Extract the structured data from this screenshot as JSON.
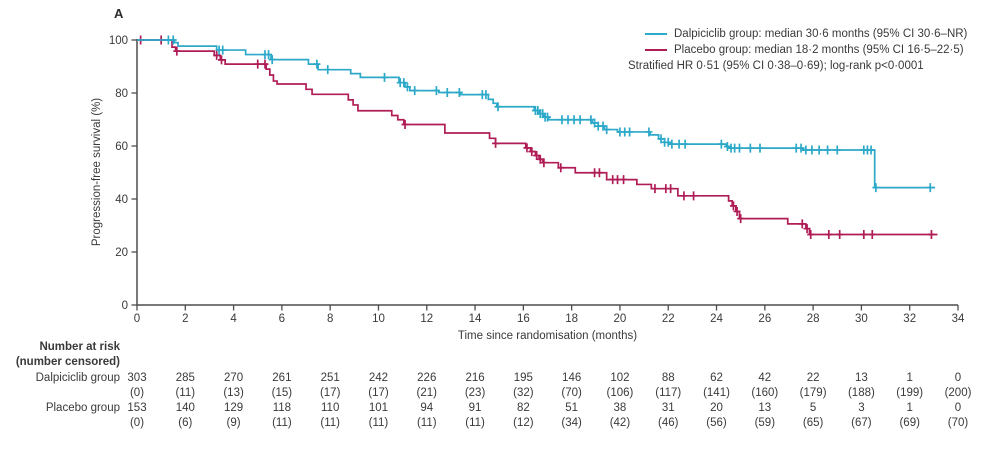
{
  "panel_label": "A",
  "colors": {
    "dalpiciclib": "#2CA9C8",
    "placebo": "#B01D56",
    "axis": "#4D4D4F",
    "text": "#3A3A3A"
  },
  "legend": {
    "items": [
      {
        "color_key": "dalpiciclib",
        "label": "Dalpiciclib group: median 30·6 months (95% CI 30·6–NR)"
      },
      {
        "color_key": "placebo",
        "label": "Placebo group: median 18·2 months (95% CI 16·5–22·5)"
      }
    ],
    "note": "Stratified HR 0·51 (95% CI 0·38–0·69); log-rank p<0·0001"
  },
  "chart_data": {
    "type": "line",
    "subtype": "kaplan-meier-step",
    "xlabel": "Time since randomisation (months)",
    "ylabel": "Progression-free survival (%)",
    "xlim": [
      0,
      34
    ],
    "ylim": [
      0,
      100
    ],
    "x_ticks": [
      0,
      2,
      4,
      6,
      8,
      10,
      12,
      14,
      16,
      18,
      20,
      22,
      24,
      26,
      28,
      30,
      32,
      34
    ],
    "y_ticks": [
      0,
      20,
      40,
      60,
      80,
      100
    ],
    "legend_position": "top-right",
    "grid": false,
    "series": [
      {
        "name": "Dalpiciclib group",
        "color_key": "dalpiciclib",
        "steps": [
          [
            0,
            100
          ],
          [
            1.55,
            99.0
          ],
          [
            1.7,
            97.7
          ],
          [
            3.3,
            96.2
          ],
          [
            4.5,
            94.5
          ],
          [
            5.55,
            92.6
          ],
          [
            7.1,
            90.9
          ],
          [
            7.5,
            88.8
          ],
          [
            8.85,
            87.3
          ],
          [
            9.25,
            85.9
          ],
          [
            10.85,
            83.9
          ],
          [
            11.1,
            82.3
          ],
          [
            11.3,
            80.9
          ],
          [
            12.5,
            80.2
          ],
          [
            13.4,
            79.4
          ],
          [
            14.55,
            77.6
          ],
          [
            14.75,
            76.1
          ],
          [
            14.9,
            74.8
          ],
          [
            16.45,
            73.4
          ],
          [
            16.65,
            72.2
          ],
          [
            16.85,
            70.9
          ],
          [
            17.05,
            69.9
          ],
          [
            18.85,
            68.7
          ],
          [
            19.1,
            67.5
          ],
          [
            19.35,
            66.2
          ],
          [
            19.9,
            65.3
          ],
          [
            21.25,
            64.2
          ],
          [
            21.6,
            62.7
          ],
          [
            21.85,
            61.4
          ],
          [
            22.05,
            60.7
          ],
          [
            24.4,
            59.8
          ],
          [
            24.6,
            59.2
          ],
          [
            27.55,
            58.5
          ],
          [
            30.55,
            44.3
          ]
        ],
        "end_month": 33.05,
        "censor_months": [
          1.3,
          1.5,
          3.4,
          3.55,
          5.3,
          5.45,
          5.6,
          7.45,
          7.9,
          10.25,
          10.9,
          11.05,
          11.2,
          11.5,
          12.4,
          12.85,
          13.35,
          14.3,
          14.45,
          14.95,
          16.5,
          16.6,
          16.7,
          16.8,
          16.9,
          17.0,
          17.6,
          17.85,
          18.1,
          18.35,
          18.8,
          18.95,
          19.1,
          19.3,
          19.45,
          20.0,
          20.2,
          20.4,
          21.2,
          21.7,
          21.85,
          22.0,
          22.15,
          22.45,
          22.7,
          24.2,
          24.45,
          24.6,
          24.75,
          24.95,
          25.4,
          25.8,
          27.3,
          27.5,
          27.7,
          27.95,
          28.25,
          28.6,
          29.0,
          30.1,
          30.25,
          30.4,
          30.6,
          32.85
        ]
      },
      {
        "name": "Placebo group",
        "color_key": "placebo",
        "steps": [
          [
            0,
            100
          ],
          [
            1.45,
            97.3
          ],
          [
            1.6,
            95.8
          ],
          [
            3.2,
            94.2
          ],
          [
            3.45,
            92.5
          ],
          [
            3.65,
            90.9
          ],
          [
            5.35,
            89.0
          ],
          [
            5.5,
            86.8
          ],
          [
            5.65,
            84.5
          ],
          [
            5.8,
            83.4
          ],
          [
            7.0,
            81.4
          ],
          [
            7.25,
            79.5
          ],
          [
            8.75,
            77.4
          ],
          [
            8.95,
            75.5
          ],
          [
            9.15,
            73.3
          ],
          [
            10.55,
            71.5
          ],
          [
            10.8,
            69.9
          ],
          [
            11.05,
            68.1
          ],
          [
            12.75,
            64.9
          ],
          [
            14.6,
            62.9
          ],
          [
            14.85,
            61.0
          ],
          [
            16.1,
            59.3
          ],
          [
            16.3,
            57.9
          ],
          [
            16.5,
            56.4
          ],
          [
            16.65,
            55.0
          ],
          [
            16.8,
            53.7
          ],
          [
            17.45,
            51.8
          ],
          [
            18.15,
            49.9
          ],
          [
            19.45,
            47.3
          ],
          [
            20.7,
            45.5
          ],
          [
            21.3,
            43.9
          ],
          [
            22.4,
            41.2
          ],
          [
            24.5,
            39.3
          ],
          [
            24.65,
            37.4
          ],
          [
            24.8,
            35.3
          ],
          [
            24.95,
            32.6
          ],
          [
            26.95,
            30.6
          ],
          [
            27.7,
            28.8
          ],
          [
            27.85,
            26.6
          ]
        ],
        "end_month": 33.15,
        "censor_months": [
          0.15,
          1.0,
          1.65,
          3.3,
          3.5,
          5.0,
          5.3,
          11.1,
          14.85,
          16.15,
          16.35,
          16.55,
          16.7,
          16.85,
          17.55,
          18.95,
          19.15,
          19.7,
          19.9,
          20.15,
          21.45,
          21.9,
          22.1,
          22.65,
          23.05,
          24.7,
          24.85,
          25.0,
          27.55,
          27.75,
          27.9,
          28.65,
          29.1,
          30.1,
          30.45,
          32.9
        ]
      }
    ]
  },
  "risk_table": {
    "header_line1": "Number at risk",
    "header_line2": "(number censored)",
    "rows": [
      {
        "label": "Dalpiciclib group",
        "at_risk": [
          303,
          285,
          270,
          261,
          251,
          242,
          226,
          216,
          195,
          146,
          102,
          88,
          62,
          42,
          22,
          13,
          1,
          0
        ],
        "censored": [
          0,
          11,
          13,
          15,
          17,
          17,
          21,
          23,
          32,
          70,
          106,
          117,
          141,
          160,
          179,
          188,
          199,
          200
        ]
      },
      {
        "label": "Placebo group",
        "at_risk": [
          153,
          140,
          129,
          118,
          110,
          101,
          94,
          91,
          82,
          51,
          38,
          31,
          20,
          13,
          5,
          3,
          1,
          0
        ],
        "censored": [
          0,
          6,
          9,
          11,
          11,
          11,
          11,
          11,
          12,
          34,
          42,
          46,
          56,
          59,
          65,
          67,
          69,
          70
        ]
      }
    ]
  }
}
